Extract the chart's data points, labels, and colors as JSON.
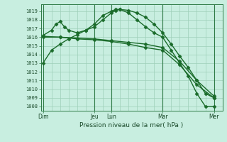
{
  "xlabel": "Pression niveau de la mer( hPa )",
  "bg_color": "#c8eee0",
  "grid_color": "#9ecfb8",
  "line_color": "#1a6b2a",
  "day_line_color": "#2d7a45",
  "ylim": [
    1007.5,
    1019.8
  ],
  "yticks": [
    1008,
    1009,
    1010,
    1011,
    1012,
    1013,
    1014,
    1015,
    1016,
    1017,
    1018,
    1019
  ],
  "x_day_labels": [
    "Dim",
    "Jeu",
    "Lun",
    "Mar",
    "Mer"
  ],
  "x_day_positions": [
    0,
    12,
    16,
    28,
    40
  ],
  "xlim": [
    -0.5,
    42
  ],
  "num_vgrid": 42,
  "lines": [
    {
      "x": [
        0,
        2,
        4,
        6,
        8,
        10,
        12,
        14,
        16,
        17,
        18,
        20,
        22,
        24,
        26,
        28,
        30,
        32,
        34,
        36,
        38,
        40
      ],
      "y": [
        1013.0,
        1014.5,
        1015.2,
        1015.8,
        1016.3,
        1016.8,
        1017.2,
        1018.0,
        1018.8,
        1019.1,
        1019.2,
        1019.1,
        1018.8,
        1018.3,
        1017.5,
        1016.5,
        1015.2,
        1013.8,
        1012.5,
        1011.0,
        1009.5,
        1009.0
      ],
      "marker": "D",
      "markersize": 2.5,
      "linewidth": 1.0
    },
    {
      "x": [
        0,
        2,
        3,
        4,
        5,
        6,
        8,
        10,
        12,
        14,
        16,
        17,
        18,
        20,
        22,
        24,
        26,
        28,
        30,
        32,
        34,
        36,
        38,
        40
      ],
      "y": [
        1016.2,
        1016.8,
        1017.5,
        1017.8,
        1017.2,
        1016.8,
        1016.5,
        1016.8,
        1017.5,
        1018.5,
        1019.0,
        1019.2,
        1019.2,
        1018.8,
        1018.0,
        1017.2,
        1016.5,
        1016.0,
        1014.5,
        1013.0,
        1011.5,
        1009.5,
        1008.0,
        1008.0
      ],
      "marker": "D",
      "markersize": 2.5,
      "linewidth": 1.0
    },
    {
      "x": [
        0,
        4,
        8,
        12,
        16,
        20,
        24,
        28,
        32,
        36,
        40
      ],
      "y": [
        1016.1,
        1016.0,
        1015.9,
        1015.8,
        1015.6,
        1015.4,
        1015.2,
        1014.8,
        1013.2,
        1011.0,
        1009.2
      ],
      "marker": "D",
      "markersize": 2.5,
      "linewidth": 1.0
    },
    {
      "x": [
        0,
        4,
        8,
        12,
        16,
        20,
        24,
        28,
        32,
        36,
        40
      ],
      "y": [
        1016.0,
        1016.0,
        1015.8,
        1015.7,
        1015.5,
        1015.2,
        1014.8,
        1014.5,
        1012.8,
        1010.5,
        1009.0
      ],
      "marker": "D",
      "markersize": 2.5,
      "linewidth": 1.0
    }
  ]
}
